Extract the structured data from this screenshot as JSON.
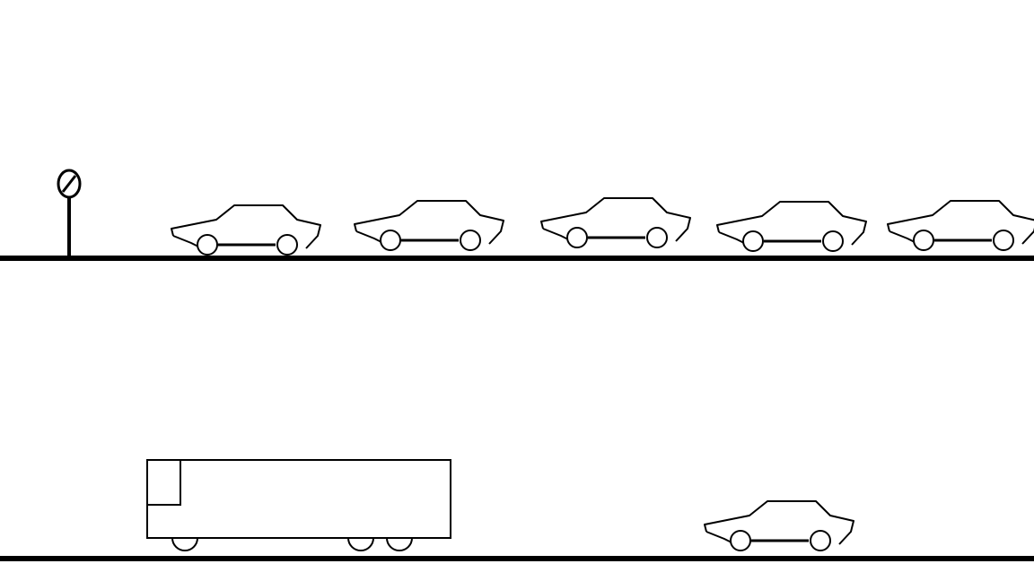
{
  "colors": {
    "background": "#ffffff",
    "stroke": "#000000"
  },
  "scene": {
    "upper_lane": {
      "sign": {
        "icon": "no-entry-sign-icon"
      },
      "cars": [
        {
          "icon": "car-icon"
        },
        {
          "icon": "car-icon"
        },
        {
          "icon": "car-icon"
        },
        {
          "icon": "car-icon"
        },
        {
          "icon": "car-icon"
        }
      ]
    },
    "lower_lane": {
      "vehicles": [
        {
          "icon": "bus-icon"
        },
        {
          "icon": "car-icon"
        }
      ]
    }
  }
}
